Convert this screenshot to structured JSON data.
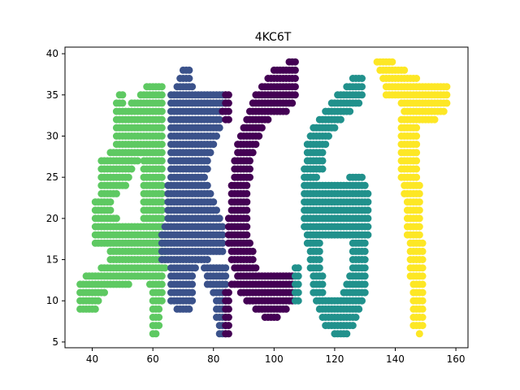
{
  "chart_data": {
    "type": "scatter",
    "title": "4KC6T",
    "xlabel": "",
    "ylabel": "",
    "xlim": [
      31,
      164
    ],
    "ylim": [
      4.3,
      40.8
    ],
    "xticks": [
      40,
      60,
      80,
      100,
      120,
      140,
      160
    ],
    "yticks": [
      5,
      10,
      15,
      20,
      25,
      30,
      35,
      40
    ],
    "grid": false,
    "legend": "none",
    "glyph_colors": [
      "#5ec962",
      "#3b528b",
      "#440154",
      "#21918c",
      "#fde725"
    ],
    "glyphs": [
      {
        "char": "4",
        "color": "#5ec962",
        "rows": [
          [
            6,
            60,
            61
          ],
          [
            7,
            60,
            62
          ],
          [
            8,
            60,
            62
          ],
          [
            9,
            36,
            41
          ],
          [
            9,
            60,
            62
          ],
          [
            10,
            36,
            42
          ],
          [
            10,
            60,
            63
          ],
          [
            11,
            36,
            44
          ],
          [
            11,
            60,
            63
          ],
          [
            12,
            36,
            52
          ],
          [
            12,
            59,
            63
          ],
          [
            13,
            38,
            63
          ],
          [
            14,
            43,
            64
          ],
          [
            15,
            46,
            64
          ],
          [
            16,
            46,
            64
          ],
          [
            17,
            41,
            64
          ],
          [
            18,
            41,
            64
          ],
          [
            19,
            41,
            63
          ],
          [
            20,
            41,
            48
          ],
          [
            20,
            57,
            63
          ],
          [
            21,
            41,
            46
          ],
          [
            21,
            57,
            63
          ],
          [
            22,
            41,
            46
          ],
          [
            22,
            57,
            63
          ],
          [
            23,
            43,
            48
          ],
          [
            23,
            57,
            63
          ],
          [
            24,
            43,
            51
          ],
          [
            24,
            57,
            63
          ],
          [
            25,
            43,
            52
          ],
          [
            25,
            57,
            63
          ],
          [
            26,
            43,
            53
          ],
          [
            26,
            57,
            63
          ],
          [
            27,
            43,
            55
          ],
          [
            27,
            57,
            63
          ],
          [
            28,
            46,
            63
          ],
          [
            29,
            48,
            63
          ],
          [
            30,
            48,
            63
          ],
          [
            31,
            48,
            63
          ],
          [
            32,
            48,
            63
          ],
          [
            33,
            48,
            63
          ],
          [
            34,
            48,
            50
          ],
          [
            34,
            53,
            63
          ],
          [
            35,
            49,
            50
          ],
          [
            35,
            56,
            63
          ],
          [
            36,
            58,
            63
          ]
        ]
      },
      {
        "char": "K",
        "color": "#3b528b",
        "rows": [
          [
            9,
            68,
            72
          ],
          [
            10,
            66,
            73
          ],
          [
            11,
            66,
            73
          ],
          [
            12,
            66,
            73
          ],
          [
            13,
            66,
            73
          ],
          [
            14,
            66,
            74
          ],
          [
            15,
            63,
            78
          ],
          [
            16,
            63,
            83
          ],
          [
            17,
            63,
            83
          ],
          [
            18,
            63,
            83
          ],
          [
            19,
            64,
            83
          ],
          [
            20,
            65,
            82
          ],
          [
            21,
            65,
            81
          ],
          [
            22,
            65,
            80
          ],
          [
            23,
            65,
            79
          ],
          [
            24,
            65,
            78
          ],
          [
            25,
            66,
            77
          ],
          [
            26,
            66,
            78
          ],
          [
            27,
            66,
            78
          ],
          [
            28,
            66,
            79
          ],
          [
            29,
            66,
            80
          ],
          [
            30,
            66,
            81
          ],
          [
            31,
            66,
            82
          ],
          [
            32,
            66,
            82
          ],
          [
            33,
            66,
            83
          ],
          [
            34,
            66,
            84
          ],
          [
            35,
            66,
            84
          ],
          [
            36,
            68,
            73
          ],
          [
            37,
            69,
            72
          ],
          [
            38,
            70,
            72
          ],
          [
            6,
            82,
            84
          ],
          [
            7,
            82,
            84
          ],
          [
            8,
            81,
            84
          ],
          [
            9,
            81,
            84
          ],
          [
            10,
            81,
            84
          ],
          [
            11,
            80,
            84
          ],
          [
            12,
            78,
            84
          ],
          [
            13,
            78,
            84
          ],
          [
            14,
            77,
            84
          ]
        ]
      },
      {
        "char": "C",
        "color": "#440154",
        "rows": [
          [
            6,
            84,
            85
          ],
          [
            7,
            84,
            85
          ],
          [
            8,
            84,
            85
          ],
          [
            9,
            84,
            85
          ],
          [
            10,
            84,
            85
          ],
          [
            11,
            84,
            85
          ],
          [
            12,
            86,
            87
          ],
          [
            8,
            97,
            101
          ],
          [
            9,
            94,
            104
          ],
          [
            10,
            91,
            106
          ],
          [
            11,
            89,
            106
          ],
          [
            12,
            88,
            106
          ],
          [
            13,
            88,
            106
          ],
          [
            14,
            87,
            94
          ],
          [
            15,
            86,
            93
          ],
          [
            16,
            86,
            93
          ],
          [
            17,
            85,
            92
          ],
          [
            18,
            85,
            91
          ],
          [
            19,
            85,
            91
          ],
          [
            20,
            85,
            91
          ],
          [
            21,
            86,
            91
          ],
          [
            22,
            86,
            91
          ],
          [
            23,
            86,
            91
          ],
          [
            24,
            86,
            91
          ],
          [
            25,
            87,
            92
          ],
          [
            26,
            87,
            92
          ],
          [
            27,
            87,
            92
          ],
          [
            28,
            88,
            93
          ],
          [
            29,
            88,
            94
          ],
          [
            30,
            89,
            95
          ],
          [
            31,
            90,
            96
          ],
          [
            32,
            91,
            98
          ],
          [
            33,
            92,
            104
          ],
          [
            34,
            93,
            106
          ],
          [
            35,
            94,
            107
          ],
          [
            36,
            96,
            107
          ],
          [
            37,
            98,
            107
          ],
          [
            38,
            100,
            107
          ],
          [
            39,
            105,
            107
          ],
          [
            35,
            84,
            85
          ],
          [
            34,
            84,
            85
          ],
          [
            33,
            83,
            85
          ],
          [
            32,
            84,
            85
          ]
        ]
      },
      {
        "char": "6",
        "color": "#21918c",
        "rows": [
          [
            6,
            120,
            124
          ],
          [
            7,
            117,
            126
          ],
          [
            8,
            116,
            127
          ],
          [
            9,
            115,
            128
          ],
          [
            10,
            114,
            129
          ],
          [
            10,
            107,
            108
          ],
          [
            11,
            107,
            108
          ],
          [
            12,
            107,
            108
          ],
          [
            13,
            107,
            108
          ],
          [
            14,
            107,
            108
          ],
          [
            11,
            113,
            116
          ],
          [
            11,
            123,
            130
          ],
          [
            12,
            113,
            116
          ],
          [
            12,
            124,
            130
          ],
          [
            13,
            113,
            116
          ],
          [
            13,
            125,
            130
          ],
          [
            14,
            112,
            115
          ],
          [
            14,
            126,
            130
          ],
          [
            15,
            112,
            115
          ],
          [
            15,
            126,
            130
          ],
          [
            16,
            112,
            115
          ],
          [
            16,
            126,
            130
          ],
          [
            17,
            111,
            115
          ],
          [
            17,
            126,
            130
          ],
          [
            18,
            111,
            131
          ],
          [
            19,
            110,
            131
          ],
          [
            20,
            110,
            131
          ],
          [
            21,
            110,
            131
          ],
          [
            22,
            110,
            131
          ],
          [
            23,
            110,
            131
          ],
          [
            24,
            110,
            130
          ],
          [
            25,
            110,
            114
          ],
          [
            25,
            125,
            129
          ],
          [
            26,
            110,
            116
          ],
          [
            27,
            111,
            116
          ],
          [
            28,
            111,
            116
          ],
          [
            29,
            111,
            117
          ],
          [
            30,
            112,
            118
          ],
          [
            31,
            113,
            120
          ],
          [
            32,
            115,
            122
          ],
          [
            33,
            117,
            125
          ],
          [
            34,
            119,
            128
          ],
          [
            35,
            121,
            129
          ],
          [
            36,
            124,
            129
          ],
          [
            37,
            126,
            129
          ]
        ]
      },
      {
        "char": "T",
        "color": "#fde725",
        "rows": [
          [
            6,
            148,
            148
          ],
          [
            7,
            146,
            149
          ],
          [
            8,
            146,
            149
          ],
          [
            9,
            146,
            149
          ],
          [
            10,
            146,
            149
          ],
          [
            11,
            146,
            149
          ],
          [
            12,
            146,
            149
          ],
          [
            13,
            145,
            149
          ],
          [
            14,
            145,
            149
          ],
          [
            15,
            145,
            149
          ],
          [
            16,
            145,
            149
          ],
          [
            17,
            145,
            149
          ],
          [
            18,
            144,
            148
          ],
          [
            19,
            144,
            148
          ],
          [
            20,
            144,
            148
          ],
          [
            21,
            144,
            148
          ],
          [
            22,
            144,
            148
          ],
          [
            23,
            143,
            148
          ],
          [
            24,
            143,
            148
          ],
          [
            25,
            142,
            147
          ],
          [
            26,
            142,
            147
          ],
          [
            27,
            142,
            147
          ],
          [
            28,
            142,
            147
          ],
          [
            29,
            142,
            147
          ],
          [
            30,
            142,
            147
          ],
          [
            31,
            142,
            147
          ],
          [
            32,
            142,
            153
          ],
          [
            33,
            143,
            156
          ],
          [
            34,
            142,
            157
          ],
          [
            35,
            137,
            157
          ],
          [
            36,
            137,
            157
          ],
          [
            37,
            136,
            147
          ],
          [
            38,
            135,
            143
          ],
          [
            39,
            134,
            139
          ]
        ]
      }
    ]
  }
}
